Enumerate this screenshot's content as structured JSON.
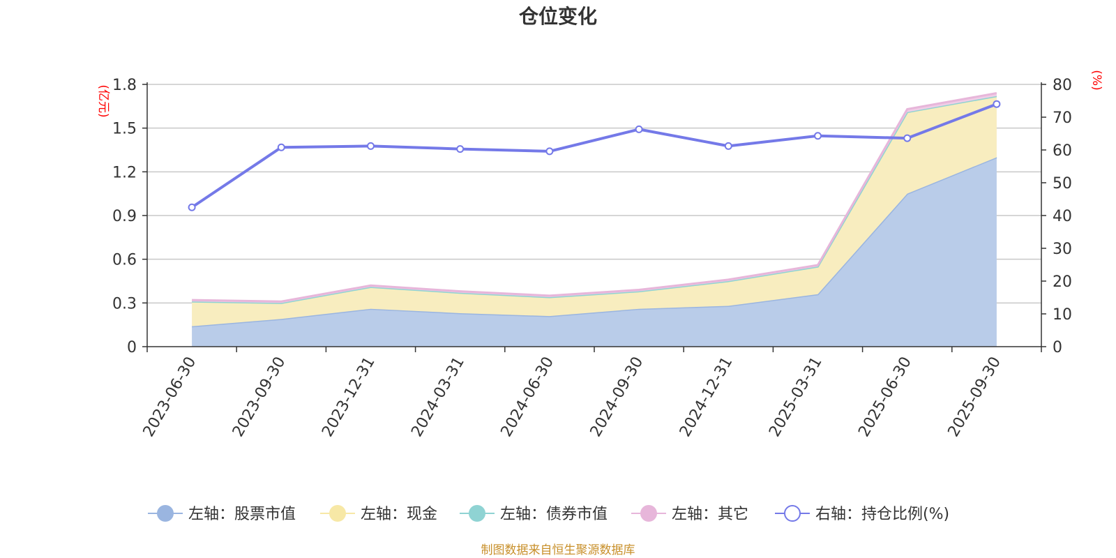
{
  "title": "仓位变化",
  "left_unit": "(亿元)",
  "right_unit": "(%)",
  "source": "制图数据来自恒生聚源数据库",
  "legend": [
    {
      "label": "左轴：股票市值",
      "color": "#9ab5e0",
      "icon": "filled-circle"
    },
    {
      "label": "左轴：现金",
      "color": "#f7e8a6",
      "icon": "filled-circle"
    },
    {
      "label": "左轴：债券市值",
      "color": "#8fd3d3",
      "icon": "filled-circle"
    },
    {
      "label": "左轴：其它",
      "color": "#e7b6da",
      "icon": "filled-circle"
    },
    {
      "label": "右轴：持仓比例(%)",
      "color": "#7479e8",
      "icon": "hollow-circle"
    }
  ],
  "chart_data": {
    "type": "area",
    "x": [
      "2023-06-30",
      "2023-09-30",
      "2023-12-31",
      "2024-03-31",
      "2024-06-30",
      "2024-09-30",
      "2024-12-31",
      "2025-03-31",
      "2025-06-30",
      "2025-09-30"
    ],
    "left_axis": {
      "ylim": [
        0,
        1.8
      ],
      "ticks": [
        "0",
        "0.3",
        "0.6",
        "0.9",
        "1.2",
        "1.5",
        "1.8"
      ],
      "unit": "亿元"
    },
    "right_axis": {
      "ylim": [
        0,
        80
      ],
      "ticks": [
        "0",
        "10",
        "20",
        "30",
        "40",
        "50",
        "60",
        "70",
        "80"
      ],
      "unit": "%"
    },
    "stacked_series": [
      {
        "name": "左轴：股票市值",
        "color": "#9ab5e0",
        "fill": "#b9cce9",
        "values": [
          0.14,
          0.19,
          0.26,
          0.23,
          0.21,
          0.26,
          0.28,
          0.36,
          1.05,
          1.3
        ]
      },
      {
        "name": "左轴：现金",
        "color": "#f7e8a6",
        "fill": "#f8edbf",
        "values": [
          0.17,
          0.11,
          0.15,
          0.14,
          0.13,
          0.12,
          0.17,
          0.19,
          0.56,
          0.42
        ]
      },
      {
        "name": "左轴：债券市值",
        "color": "#8fd3d3",
        "fill": "#8fd3d3",
        "values": [
          0,
          0,
          0,
          0,
          0,
          0,
          0,
          0,
          0,
          0
        ]
      },
      {
        "name": "左轴：其它",
        "color": "#e7b6da",
        "fill": "#f0cde6",
        "values": [
          0.01,
          0.01,
          0.01,
          0.01,
          0.01,
          0.01,
          0.01,
          0.01,
          0.02,
          0.02
        ]
      }
    ],
    "line_series": {
      "name": "右轴：持仓比例(%)",
      "color": "#7479e8",
      "values": [
        42.5,
        60.8,
        61.2,
        60.3,
        59.6,
        66.3,
        61.2,
        64.3,
        63.6,
        74.0
      ]
    },
    "grid": true,
    "legend_position": "bottom"
  }
}
